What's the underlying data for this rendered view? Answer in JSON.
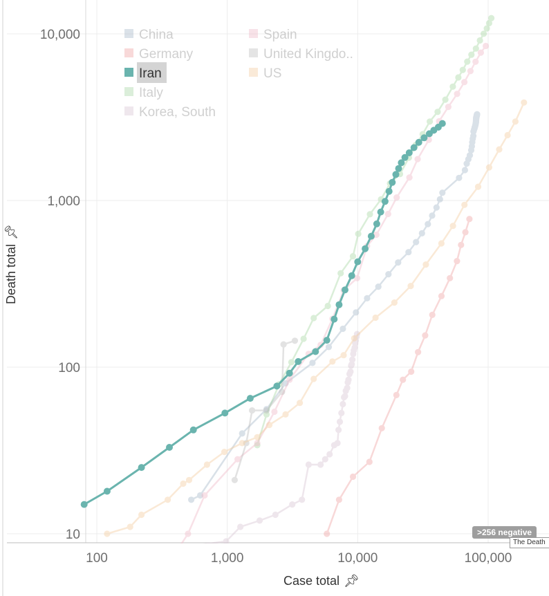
{
  "chart_data": {
    "type": "line",
    "xlabel": "Case total",
    "ylabel": "Death total",
    "x_scale": "log",
    "y_scale": "log",
    "xlim": [
      80,
      200000
    ],
    "ylim": [
      8.7,
      15000
    ],
    "x_ticks": [
      {
        "value": 100,
        "label": "100"
      },
      {
        "value": 1000,
        "label": "1,000"
      },
      {
        "value": 10000,
        "label": "10,000"
      },
      {
        "value": 100000,
        "label": "100,000"
      }
    ],
    "y_ticks": [
      {
        "value": 10,
        "label": "10"
      },
      {
        "value": 100,
        "label": "100"
      },
      {
        "value": 1000,
        "label": "1,000"
      },
      {
        "value": 10000,
        "label": "10,000"
      }
    ],
    "grid": true,
    "legend_position": "top-left (inside plot)",
    "highlighted_series": "Iran",
    "badge": ">256 negative",
    "tooltip_fragment": "The Death",
    "series": [
      {
        "name": "China",
        "color": "#a7b8c9",
        "values": [
          [
            530,
            16
          ],
          [
            620,
            17
          ],
          [
            1300,
            40
          ],
          [
            2000,
            56
          ],
          [
            2800,
            80
          ],
          [
            4500,
            106
          ],
          [
            6000,
            132
          ],
          [
            7700,
            170
          ],
          [
            9700,
            213
          ],
          [
            11800,
            259
          ],
          [
            14400,
            304
          ],
          [
            17200,
            361
          ],
          [
            20400,
            425
          ],
          [
            24500,
            490
          ],
          [
            28000,
            563
          ],
          [
            31100,
            636
          ],
          [
            34500,
            722
          ],
          [
            37200,
            811
          ],
          [
            40200,
            908
          ],
          [
            42700,
            1017
          ],
          [
            44600,
            1114
          ],
          [
            59800,
            1367
          ],
          [
            66400,
            1523
          ],
          [
            68500,
            1665
          ],
          [
            70500,
            1770
          ],
          [
            72400,
            1868
          ],
          [
            74200,
            2004
          ],
          [
            75000,
            2118
          ],
          [
            75500,
            2236
          ],
          [
            76200,
            2345
          ],
          [
            77000,
            2442
          ],
          [
            77200,
            2592
          ],
          [
            78000,
            2663
          ],
          [
            78600,
            2715
          ],
          [
            78900,
            2744
          ],
          [
            79400,
            2788
          ],
          [
            79900,
            2835
          ],
          [
            80100,
            2870
          ],
          [
            80400,
            2912
          ],
          [
            80600,
            2945
          ],
          [
            80700,
            2981
          ],
          [
            80800,
            3013
          ],
          [
            80800,
            3042
          ],
          [
            80900,
            3070
          ],
          [
            81000,
            3097
          ],
          [
            81000,
            3119
          ],
          [
            81100,
            3136
          ],
          [
            81200,
            3158
          ],
          [
            81300,
            3169
          ],
          [
            81400,
            3176
          ],
          [
            81500,
            3190
          ],
          [
            81600,
            3203
          ],
          [
            81700,
            3217
          ],
          [
            81800,
            3230
          ],
          [
            81900,
            3245
          ],
          [
            82000,
            3261
          ],
          [
            82100,
            3276
          ],
          [
            82200,
            3284
          ],
          [
            82300,
            3295
          ]
        ]
      },
      {
        "name": "Germany",
        "color": "#f0a3a3",
        "values": [
          [
            5800,
            10
          ],
          [
            7200,
            16
          ],
          [
            9200,
            22
          ],
          [
            12300,
            27
          ],
          [
            15300,
            43
          ],
          [
            19800,
            68
          ],
          [
            22200,
            84
          ],
          [
            25700,
            94
          ],
          [
            29000,
            123
          ],
          [
            32900,
            155
          ],
          [
            37300,
            206
          ],
          [
            43900,
            267
          ],
          [
            50900,
            342
          ],
          [
            57700,
            433
          ],
          [
            62000,
            541
          ],
          [
            66900,
            645
          ],
          [
            71800,
            775
          ]
        ]
      },
      {
        "name": "Iran",
        "color": "#6ab4ae",
        "values": [
          [
            80,
            15
          ],
          [
            120,
            18
          ],
          [
            220,
            25
          ],
          [
            360,
            33
          ],
          [
            550,
            42
          ],
          [
            960,
            53
          ],
          [
            1500,
            65
          ],
          [
            2400,
            77
          ],
          [
            3000,
            92
          ],
          [
            3500,
            108
          ],
          [
            4750,
            124
          ],
          [
            5800,
            145
          ],
          [
            6600,
            194
          ],
          [
            7200,
            237
          ],
          [
            8000,
            291
          ],
          [
            9000,
            354
          ],
          [
            10000,
            429
          ],
          [
            11400,
            514
          ],
          [
            12700,
            611
          ],
          [
            14000,
            724
          ],
          [
            15000,
            853
          ],
          [
            16200,
            988
          ],
          [
            17400,
            1135
          ],
          [
            18400,
            1284
          ],
          [
            19600,
            1433
          ],
          [
            20600,
            1556
          ],
          [
            21600,
            1685
          ],
          [
            23000,
            1812
          ],
          [
            24800,
            1934
          ],
          [
            27000,
            2077
          ],
          [
            29400,
            2234
          ],
          [
            32300,
            2378
          ],
          [
            35400,
            2517
          ],
          [
            38300,
            2640
          ],
          [
            41500,
            2757
          ],
          [
            44600,
            2898
          ]
        ]
      },
      {
        "name": "Italy",
        "color": "#a8d7a4",
        "values": [
          [
            1700,
            34
          ],
          [
            2000,
            52
          ],
          [
            2500,
            79
          ],
          [
            3100,
            107
          ],
          [
            3850,
            148
          ],
          [
            4600,
            197
          ],
          [
            5900,
            233
          ],
          [
            7400,
            366
          ],
          [
            9200,
            463
          ],
          [
            10100,
            631
          ],
          [
            12400,
            827
          ],
          [
            15100,
            1016
          ],
          [
            17700,
            1266
          ],
          [
            21100,
            1441
          ],
          [
            24700,
            1809
          ],
          [
            27900,
            2158
          ],
          [
            31500,
            2503
          ],
          [
            35700,
            2978
          ],
          [
            41000,
            3405
          ],
          [
            47000,
            4032
          ],
          [
            53600,
            4825
          ],
          [
            59100,
            5476
          ],
          [
            63900,
            6077
          ],
          [
            69200,
            6820
          ],
          [
            74400,
            7503
          ],
          [
            80600,
            8165
          ],
          [
            86500,
            9134
          ],
          [
            92500,
            10023
          ],
          [
            97700,
            10779
          ],
          [
            101700,
            11591
          ],
          [
            105800,
            12428
          ]
        ]
      },
      {
        "name": "Korea, South",
        "color": "#d8c5d3",
        "values": [
          [
            300,
            8
          ],
          [
            980,
            9
          ],
          [
            1260,
            11
          ],
          [
            1770,
            12
          ],
          [
            2340,
            13
          ],
          [
            3150,
            15
          ],
          [
            3740,
            16
          ],
          [
            4210,
            26
          ],
          [
            5190,
            26
          ],
          [
            5630,
            28
          ],
          [
            6090,
            30
          ],
          [
            6600,
            34
          ],
          [
            7000,
            35
          ],
          [
            7130,
            42
          ],
          [
            7300,
            47
          ],
          [
            7500,
            53
          ],
          [
            7700,
            60
          ],
          [
            7860,
            66
          ],
          [
            8000,
            67
          ],
          [
            8100,
            72
          ],
          [
            8300,
            75
          ],
          [
            8400,
            81
          ],
          [
            8500,
            84
          ],
          [
            8650,
            91
          ],
          [
            8800,
            94
          ],
          [
            8900,
            102
          ],
          [
            9000,
            104
          ],
          [
            9100,
            111
          ],
          [
            9240,
            120
          ],
          [
            9330,
            126
          ],
          [
            9480,
            131
          ],
          [
            9580,
            139
          ],
          [
            9660,
            144
          ],
          [
            9790,
            152
          ],
          [
            9890,
            158
          ]
        ]
      },
      {
        "name": "Spain",
        "color": "#f0b8c8",
        "values": [
          [
            280,
            5
          ],
          [
            500,
            10
          ],
          [
            670,
            17
          ],
          [
            1200,
            28
          ],
          [
            1700,
            35
          ],
          [
            2300,
            54
          ],
          [
            3000,
            84
          ],
          [
            4200,
            120
          ],
          [
            5200,
            136
          ],
          [
            6400,
            195
          ],
          [
            7800,
            289
          ],
          [
            9900,
            342
          ],
          [
            11800,
            533
          ],
          [
            13900,
            623
          ],
          [
            17100,
            830
          ],
          [
            19900,
            1043
          ],
          [
            24900,
            1375
          ],
          [
            28800,
            1772
          ],
          [
            35100,
            2311
          ],
          [
            42100,
            2991
          ],
          [
            49500,
            3647
          ],
          [
            57800,
            4365
          ],
          [
            65700,
            5138
          ],
          [
            73200,
            5982
          ],
          [
            80100,
            6803
          ],
          [
            87900,
            7716
          ],
          [
            95900,
            8464
          ]
        ]
      },
      {
        "name": "United Kingdom",
        "color": "#bcbcbc",
        "values": [
          [
            1140,
            21
          ],
          [
            1400,
            35
          ],
          [
            1550,
            55
          ],
          [
            2000,
            55
          ],
          [
            2630,
            71
          ],
          [
            2700,
            137
          ],
          [
            3300,
            144
          ]
        ]
      },
      {
        "name": "US",
        "color": "#f5cd9f",
        "values": [
          [
            120,
            10
          ],
          [
            180,
            11
          ],
          [
            220,
            13
          ],
          [
            350,
            16
          ],
          [
            460,
            20
          ],
          [
            510,
            21
          ],
          [
            700,
            26
          ],
          [
            950,
            31
          ],
          [
            1300,
            35
          ],
          [
            1700,
            38
          ],
          [
            2100,
            45
          ],
          [
            2800,
            52
          ],
          [
            3600,
            61
          ],
          [
            4600,
            85
          ],
          [
            6400,
            108
          ],
          [
            7800,
            118
          ],
          [
            9400,
            149
          ],
          [
            13700,
            198
          ],
          [
            19100,
            244
          ],
          [
            25500,
            307
          ],
          [
            33300,
            413
          ],
          [
            43800,
            553
          ],
          [
            53700,
            704
          ],
          [
            65800,
            942
          ],
          [
            83800,
            1209
          ],
          [
            101700,
            1581
          ],
          [
            121500,
            2026
          ],
          [
            140900,
            2467
          ],
          [
            161800,
            2978
          ],
          [
            188200,
            3873
          ]
        ]
      }
    ]
  },
  "legend_order": [
    {
      "label": "China",
      "color": "#a7b8c9"
    },
    {
      "label": "Germany",
      "color": "#f0a3a3"
    },
    {
      "label": "Iran",
      "color": "#6ab4ae"
    },
    {
      "label": "Italy",
      "color": "#a8d7a4"
    },
    {
      "label": "Korea, South",
      "color": "#d8c5d3"
    },
    {
      "label": "Spain",
      "color": "#f0b8c8"
    },
    {
      "label": "United Kingdo..",
      "color": "#bcbcbc"
    },
    {
      "label": "US",
      "color": "#f5cd9f"
    }
  ]
}
